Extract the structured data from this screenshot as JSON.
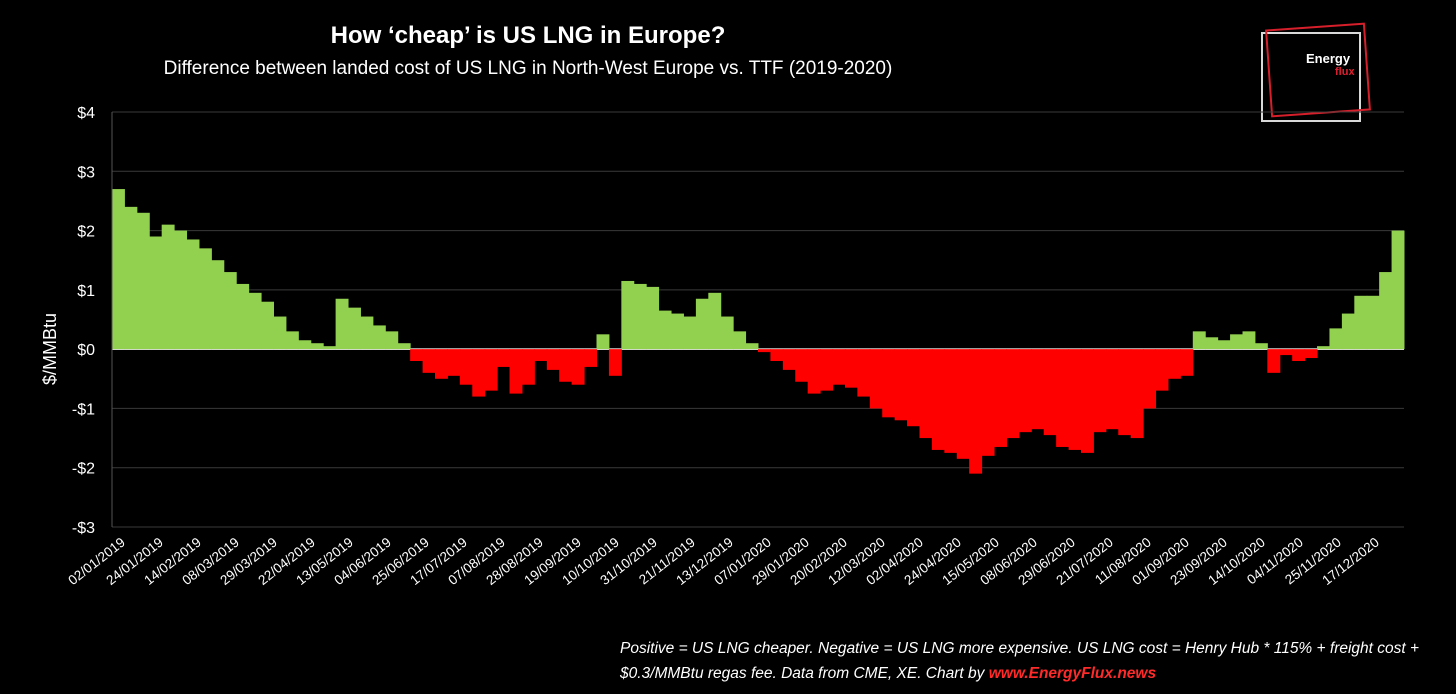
{
  "chart_data": {
    "type": "bar",
    "title": "How ‘cheap’ is US LNG in Europe?",
    "subtitle": "Difference between landed cost of US LNG in North-West Europe vs. TTF (2019-2020)",
    "ylabel": "$/MMBtu",
    "xlabel": "",
    "ylim": [
      -3,
      4
    ],
    "y_ticks": [
      4,
      3,
      2,
      1,
      0,
      -1,
      -2,
      -3
    ],
    "y_tick_labels": [
      "$4",
      "$3",
      "$2",
      "$1",
      "$0",
      "-$1",
      "-$2",
      "-$3"
    ],
    "x_tick_labels": [
      "02/01/2019",
      "24/01/2019",
      "14/02/2019",
      "08/03/2019",
      "29/03/2019",
      "22/04/2019",
      "13/05/2019",
      "04/06/2019",
      "25/06/2019",
      "17/07/2019",
      "07/08/2019",
      "28/08/2019",
      "19/09/2019",
      "10/10/2019",
      "31/10/2019",
      "21/11/2019",
      "13/12/2019",
      "07/01/2020",
      "29/01/2020",
      "20/02/2020",
      "12/03/2020",
      "02/04/2020",
      "24/04/2020",
      "15/05/2020",
      "08/06/2020",
      "29/06/2020",
      "21/07/2020",
      "11/08/2020",
      "01/09/2020",
      "23/09/2020",
      "14/10/2020",
      "04/11/2020",
      "25/11/2020",
      "17/12/2020"
    ],
    "grid": true,
    "legend": "none",
    "colors": {
      "positive": "#92d050",
      "negative": "#ff0000"
    },
    "values_weekly": [
      2.7,
      2.4,
      2.3,
      1.9,
      2.1,
      2.0,
      1.85,
      1.7,
      1.5,
      1.3,
      1.1,
      0.95,
      0.8,
      0.55,
      0.3,
      0.15,
      0.1,
      0.05,
      0.85,
      0.7,
      0.55,
      0.4,
      0.3,
      0.1,
      -0.2,
      -0.4,
      -0.5,
      -0.45,
      -0.6,
      -0.8,
      -0.7,
      -0.3,
      -0.75,
      -0.6,
      -0.2,
      -0.35,
      -0.55,
      -0.6,
      -0.3,
      0.25,
      -0.45,
      1.15,
      1.1,
      1.05,
      0.65,
      0.6,
      0.55,
      0.85,
      0.95,
      0.55,
      0.3,
      0.1,
      -0.05,
      -0.2,
      -0.35,
      -0.55,
      -0.75,
      -0.7,
      -0.6,
      -0.65,
      -0.8,
      -1.0,
      -1.15,
      -1.2,
      -1.3,
      -1.5,
      -1.7,
      -1.75,
      -1.85,
      -2.1,
      -1.8,
      -1.65,
      -1.5,
      -1.4,
      -1.35,
      -1.45,
      -1.65,
      -1.7,
      -1.75,
      -1.4,
      -1.35,
      -1.45,
      -1.5,
      -1.0,
      -0.7,
      -0.5,
      -0.45,
      0.3,
      0.2,
      0.15,
      0.25,
      0.3,
      0.1,
      -0.4,
      -0.1,
      -0.2,
      -0.15,
      0.05,
      0.35,
      0.6,
      0.9,
      0.9,
      1.3,
      2.0
    ]
  },
  "footnote": {
    "text": "Positive = US LNG cheaper. Negative = US LNG more expensive. US LNG cost = Henry Hub * 115% + freight cost + $0.3/MMBtu regas fee. Data from CME, XE. Chart by ",
    "link": "www.EnergyFlux.news"
  },
  "logo": {
    "line1": "Energy",
    "line2": "flux"
  }
}
